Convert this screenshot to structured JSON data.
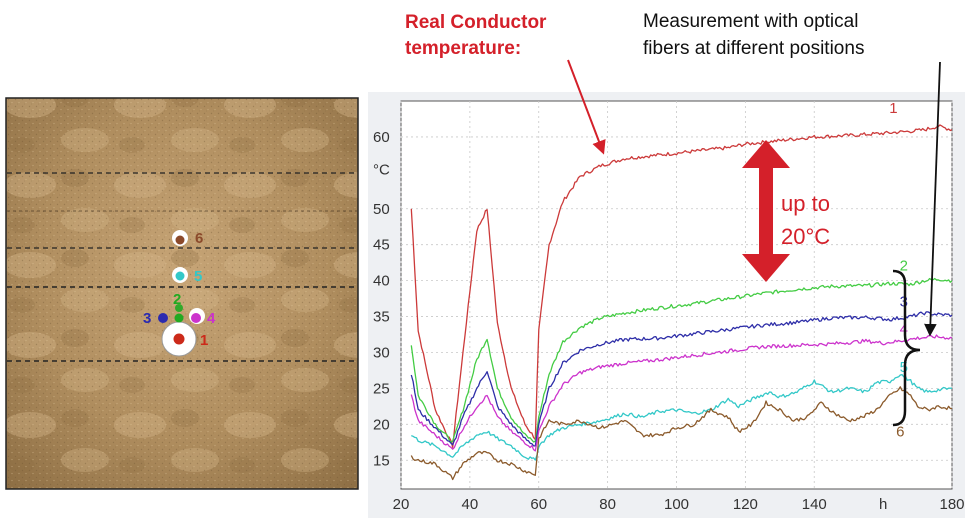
{
  "annotations": {
    "real_conductor_line1": "Real Conductor",
    "real_conductor_line2": "temperature:",
    "measurement_line1": "Measurement with optical",
    "measurement_line2": "fibers at different positions",
    "delta_line1": "up to",
    "delta_line2": "20°C"
  },
  "colors": {
    "s1": "#cc3a3a",
    "s2": "#44cc44",
    "s3": "#2e2ea8",
    "s4": "#cc33cc",
    "s5": "#33c8c8",
    "s6": "#8b5a2b",
    "accent": "#d4202a"
  },
  "soil_diagram": {
    "positions": [
      {
        "label": "1",
        "color": "#cc2a1a"
      },
      {
        "label": "2",
        "color": "#22aa22"
      },
      {
        "label": "3",
        "color": "#2a2ab0"
      },
      {
        "label": "4",
        "color": "#cc33cc"
      },
      {
        "label": "5",
        "color": "#33c8c8"
      },
      {
        "label": "6",
        "color": "#8b4a2b"
      }
    ]
  },
  "chart_data": {
    "type": "line",
    "xlabel": "",
    "x_unit_label": "h",
    "y_unit_label": "°C",
    "xlim": [
      20,
      180
    ],
    "ylim": [
      11,
      65
    ],
    "x_ticks": [
      "20",
      "40",
      "60",
      "80",
      "100",
      "120",
      "140",
      "180"
    ],
    "y_ticks": [
      "15",
      "20",
      "25",
      "30",
      "35",
      "40",
      "45",
      "50",
      "60"
    ],
    "grid": true,
    "series": [
      {
        "name": "1",
        "color": "#cc3a3a",
        "points": [
          [
            23,
            50
          ],
          [
            25,
            33
          ],
          [
            30,
            22
          ],
          [
            35,
            17
          ],
          [
            38,
            30
          ],
          [
            42,
            47
          ],
          [
            45,
            50
          ],
          [
            48,
            34
          ],
          [
            52,
            25
          ],
          [
            56,
            20
          ],
          [
            59,
            18
          ],
          [
            60,
            33
          ],
          [
            63,
            45
          ],
          [
            67,
            51
          ],
          [
            72,
            54.5
          ],
          [
            78,
            56
          ],
          [
            85,
            57
          ],
          [
            95,
            57.5
          ],
          [
            105,
            58
          ],
          [
            115,
            58.5
          ],
          [
            120,
            59
          ],
          [
            130,
            59.5
          ],
          [
            140,
            60
          ],
          [
            150,
            60.2
          ],
          [
            160,
            60.5
          ],
          [
            168,
            60.8
          ],
          [
            172,
            61
          ],
          [
            176,
            61.5
          ],
          [
            180,
            61
          ]
        ]
      },
      {
        "name": "2",
        "color": "#44cc44",
        "points": [
          [
            23,
            31
          ],
          [
            25,
            24
          ],
          [
            30,
            20
          ],
          [
            35,
            17.5
          ],
          [
            38,
            22
          ],
          [
            42,
            29
          ],
          [
            45,
            32
          ],
          [
            48,
            25
          ],
          [
            52,
            21
          ],
          [
            56,
            18.5
          ],
          [
            59,
            17.5
          ],
          [
            60,
            21
          ],
          [
            63,
            27
          ],
          [
            67,
            31.5
          ],
          [
            72,
            33.5
          ],
          [
            78,
            34.8
          ],
          [
            85,
            35.5
          ],
          [
            95,
            36.2
          ],
          [
            105,
            36.8
          ],
          [
            115,
            37.5
          ],
          [
            125,
            38.2
          ],
          [
            135,
            38.8
          ],
          [
            145,
            39.2
          ],
          [
            155,
            39.3
          ],
          [
            162,
            39.6
          ],
          [
            168,
            39.5
          ],
          [
            172,
            40
          ],
          [
            176,
            40.2
          ],
          [
            180,
            40
          ]
        ]
      },
      {
        "name": "3",
        "color": "#2e2ea8",
        "points": [
          [
            23,
            27
          ],
          [
            25,
            22
          ],
          [
            30,
            19.5
          ],
          [
            35,
            17
          ],
          [
            38,
            21
          ],
          [
            42,
            25
          ],
          [
            45,
            27.5
          ],
          [
            48,
            22.5
          ],
          [
            52,
            20
          ],
          [
            56,
            18
          ],
          [
            59,
            17
          ],
          [
            60,
            20
          ],
          [
            63,
            25
          ],
          [
            67,
            28.5
          ],
          [
            72,
            30.3
          ],
          [
            78,
            31.2
          ],
          [
            85,
            31.8
          ],
          [
            95,
            32
          ],
          [
            105,
            32.6
          ],
          [
            115,
            33.2
          ],
          [
            125,
            33.8
          ],
          [
            135,
            34.2
          ],
          [
            145,
            34.8
          ],
          [
            155,
            34.9
          ],
          [
            162,
            34.6
          ],
          [
            168,
            35
          ],
          [
            172,
            35.5
          ],
          [
            176,
            35.3
          ],
          [
            180,
            35.2
          ]
        ]
      },
      {
        "name": "4",
        "color": "#cc33cc",
        "points": [
          [
            23,
            24
          ],
          [
            25,
            20.5
          ],
          [
            30,
            18.5
          ],
          [
            35,
            16.5
          ],
          [
            38,
            19.5
          ],
          [
            42,
            22.5
          ],
          [
            45,
            24
          ],
          [
            48,
            21
          ],
          [
            52,
            19
          ],
          [
            56,
            17.5
          ],
          [
            59,
            16.5
          ],
          [
            60,
            19
          ],
          [
            63,
            22.5
          ],
          [
            67,
            25.5
          ],
          [
            72,
            27.2
          ],
          [
            78,
            28
          ],
          [
            85,
            28.5
          ],
          [
            95,
            29
          ],
          [
            105,
            29.6
          ],
          [
            115,
            30.2
          ],
          [
            125,
            30.8
          ],
          [
            135,
            31
          ],
          [
            145,
            31.2
          ],
          [
            155,
            31.6
          ],
          [
            160,
            31.3
          ],
          [
            165,
            31.6
          ],
          [
            170,
            32
          ],
          [
            175,
            32.2
          ],
          [
            180,
            32
          ]
        ]
      },
      {
        "name": "5",
        "color": "#33c8c8",
        "points": [
          [
            23,
            18.5
          ],
          [
            25,
            17.8
          ],
          [
            30,
            17
          ],
          [
            35,
            15.5
          ],
          [
            38,
            17
          ],
          [
            42,
            18.5
          ],
          [
            45,
            19
          ],
          [
            48,
            18
          ],
          [
            52,
            17
          ],
          [
            56,
            15.5
          ],
          [
            59,
            15
          ],
          [
            60,
            17
          ],
          [
            63,
            18.5
          ],
          [
            67,
            19.5
          ],
          [
            72,
            20
          ],
          [
            78,
            20.5
          ],
          [
            85,
            21.5
          ],
          [
            90,
            21
          ],
          [
            95,
            21.8
          ],
          [
            100,
            22
          ],
          [
            105,
            21.5
          ],
          [
            110,
            22
          ],
          [
            115,
            23.5
          ],
          [
            118,
            22.5
          ],
          [
            122,
            23.5
          ],
          [
            127,
            24.5
          ],
          [
            130,
            23.8
          ],
          [
            135,
            24.5
          ],
          [
            140,
            26
          ],
          [
            145,
            24.5
          ],
          [
            150,
            25
          ],
          [
            155,
            24.5
          ],
          [
            158,
            25.8
          ],
          [
            162,
            26
          ],
          [
            165,
            27
          ],
          [
            168,
            26
          ],
          [
            170,
            25
          ],
          [
            173,
            24.5
          ],
          [
            176,
            24.8
          ],
          [
            180,
            25
          ]
        ]
      },
      {
        "name": "6",
        "color": "#8b5a2b",
        "points": [
          [
            23,
            15.5
          ],
          [
            25,
            15
          ],
          [
            30,
            14.5
          ],
          [
            35,
            12.5
          ],
          [
            38,
            14.5
          ],
          [
            42,
            16
          ],
          [
            45,
            16
          ],
          [
            48,
            15
          ],
          [
            52,
            14.5
          ],
          [
            56,
            13.5
          ],
          [
            59,
            13
          ],
          [
            60,
            18
          ],
          [
            63,
            20.5
          ],
          [
            67,
            20
          ],
          [
            72,
            20.5
          ],
          [
            78,
            19.5
          ],
          [
            85,
            20.5
          ],
          [
            90,
            18.5
          ],
          [
            95,
            18.5
          ],
          [
            100,
            19.5
          ],
          [
            105,
            20
          ],
          [
            110,
            22
          ],
          [
            115,
            21
          ],
          [
            118,
            19
          ],
          [
            122,
            20
          ],
          [
            126,
            23
          ],
          [
            130,
            22
          ],
          [
            134,
            20.5
          ],
          [
            138,
            21
          ],
          [
            142,
            23
          ],
          [
            146,
            21.5
          ],
          [
            150,
            20.5
          ],
          [
            154,
            21
          ],
          [
            158,
            22
          ],
          [
            162,
            24
          ],
          [
            165,
            25
          ],
          [
            168,
            24
          ],
          [
            170,
            22.5
          ],
          [
            173,
            22
          ],
          [
            176,
            22.5
          ],
          [
            180,
            22.2
          ]
        ]
      }
    ]
  }
}
